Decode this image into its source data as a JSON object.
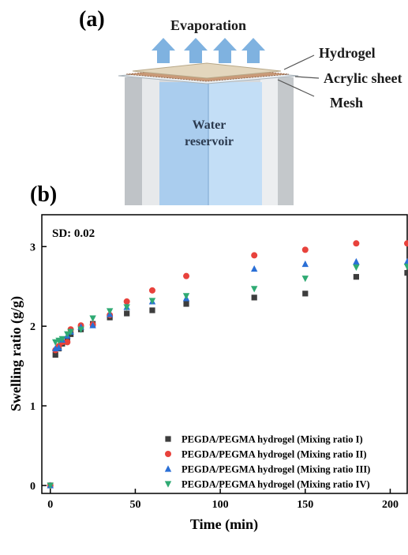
{
  "panel_a": {
    "label": "(a)",
    "evaporation": "Evaporation",
    "hydrogel": "Hydrogel",
    "acrylic_sheet": "Acrylic sheet",
    "mesh": "Mesh",
    "water_line1": "Water",
    "water_line2": "reservoir",
    "colors": {
      "wall": "#cfd3d6",
      "water": "#b8d6f2",
      "hydrogel": "#d9cbb0",
      "arrow": "#7fb2e0"
    }
  },
  "panel_b": {
    "label": "(b)",
    "sd_label": "SD: 0.02"
  },
  "chart_data": {
    "type": "scatter",
    "xlabel": "Time (min)",
    "ylabel": "Swelling ratio (g/g)",
    "xlim": [
      -5,
      210
    ],
    "ylim": [
      -0.1,
      3.4
    ],
    "xticks": [
      0,
      50,
      100,
      150,
      200
    ],
    "yticks": [
      0,
      1,
      2,
      3
    ],
    "grid": false,
    "legend_position": "bottom-right",
    "x": [
      0,
      3,
      5,
      7,
      10,
      12,
      18,
      25,
      35,
      45,
      60,
      80,
      120,
      150,
      180,
      210
    ],
    "series": [
      {
        "name": "PEGDA/PEGMA hydrogel (Mixing ratio I)",
        "marker": "square",
        "color": "#3d3d3d",
        "values": [
          0.0,
          1.64,
          1.72,
          1.78,
          1.84,
          1.9,
          1.96,
          2.03,
          2.11,
          2.16,
          2.2,
          2.28,
          2.36,
          2.41,
          2.62,
          2.67
        ]
      },
      {
        "name": "PEGDA/PEGMA hydrogel (Mixing ratio II)",
        "marker": "circle",
        "color": "#e8423c",
        "values": [
          0.0,
          1.7,
          1.75,
          1.8,
          1.8,
          1.96,
          2.01,
          2.02,
          2.14,
          2.31,
          2.45,
          2.63,
          2.89,
          2.96,
          3.04,
          3.04
        ]
      },
      {
        "name": "PEGDA/PEGMA hydrogel (Mixing ratio III)",
        "marker": "triangle-up",
        "color": "#2a6fd6",
        "values": [
          0.0,
          1.72,
          1.73,
          1.83,
          1.88,
          1.93,
          1.99,
          2.01,
          2.15,
          2.24,
          2.31,
          2.35,
          2.72,
          2.78,
          2.81,
          2.81
        ]
      },
      {
        "name": "PEGDA/PEGMA hydrogel (Mixing ratio IV)",
        "marker": "triangle-down",
        "color": "#2faa73",
        "values": [
          0.0,
          1.8,
          1.82,
          1.84,
          1.9,
          1.93,
          1.96,
          2.1,
          2.19,
          2.24,
          2.32,
          2.38,
          2.47,
          2.6,
          2.74,
          2.75
        ]
      }
    ]
  }
}
